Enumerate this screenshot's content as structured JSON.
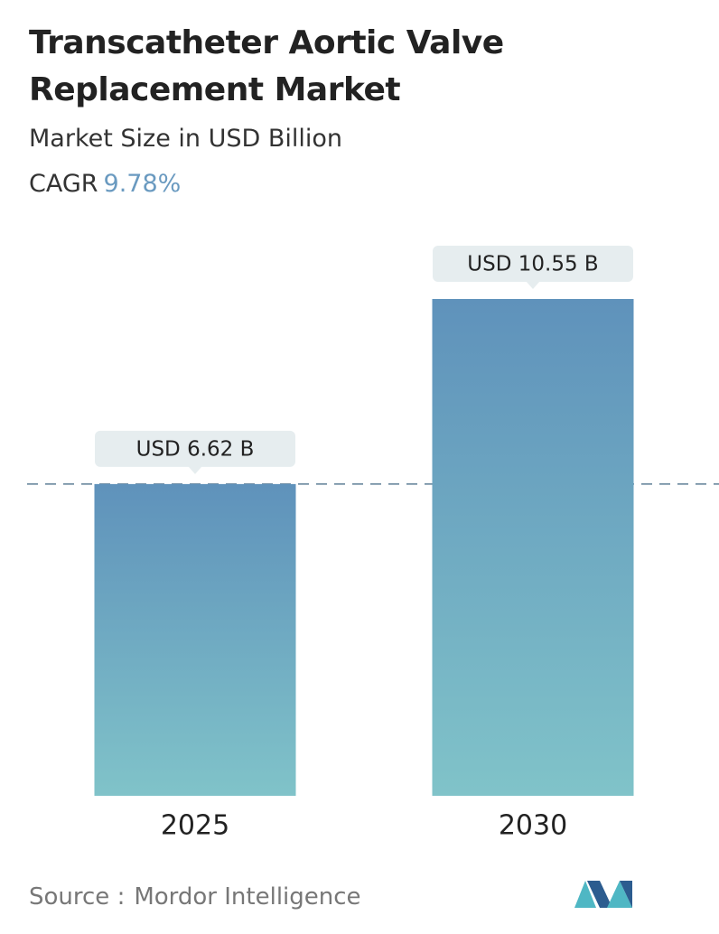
{
  "chart_data": {
    "type": "bar",
    "title": "Transcatheter Aortic Valve Replacement Market",
    "subtitle": "Market Size in USD Billion",
    "cagr_label": "CAGR",
    "cagr_value": "9.78%",
    "categories": [
      "2025",
      "2030"
    ],
    "values": [
      6.62,
      10.55
    ],
    "value_labels": [
      "USD 6.62 B",
      "USD 10.55 B"
    ],
    "source_label": "Source :",
    "source": "Mordor Intelligence"
  }
}
